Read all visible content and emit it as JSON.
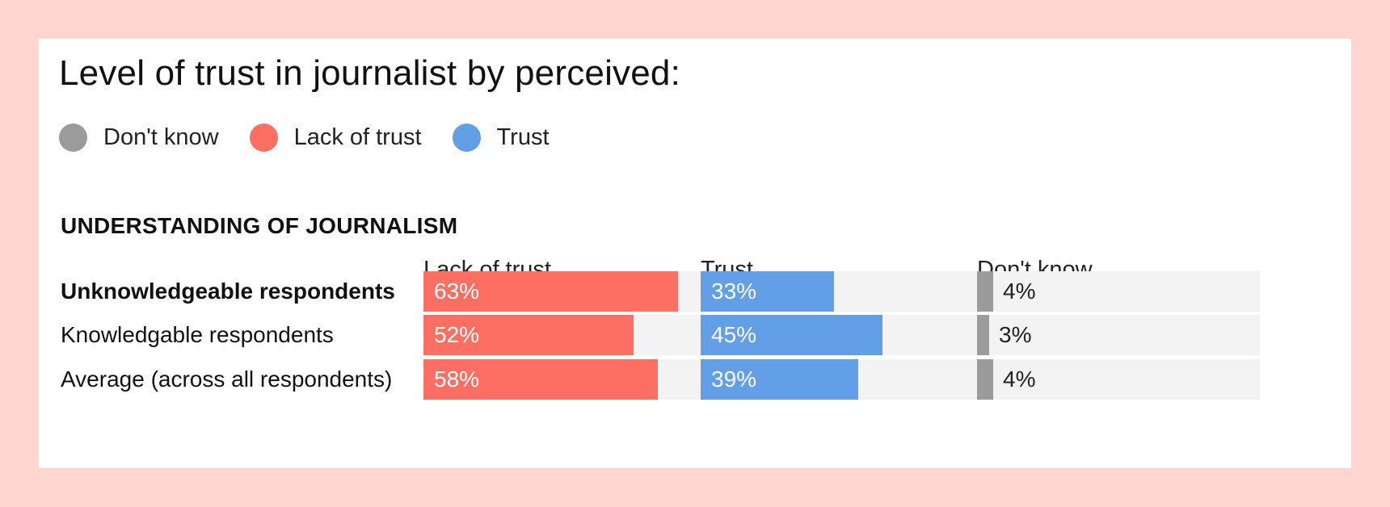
{
  "title": "Level of trust in journalist by perceived:",
  "legend": [
    {
      "label": "Don't know",
      "color": "#9b9b9b"
    },
    {
      "label": "Lack of trust",
      "color": "#fd6e63"
    },
    {
      "label": "Trust",
      "color": "#629fe6"
    }
  ],
  "chart_data": {
    "type": "bar",
    "orientation": "horizontal",
    "title": "Level of trust in journalist by perceived:",
    "subtitle": "UNDERSTANDING OF JOURNALISM",
    "categories": [
      "Unknowledgeable respondents",
      "Knowledgable respondents",
      "Average (across all respondents)"
    ],
    "highlighted_category": "Unknowledgeable respondents",
    "series": [
      {
        "name": "Lack of trust",
        "color": "#fd6e63",
        "values": [
          63,
          52,
          58
        ],
        "labels": [
          "63%",
          "52%",
          "58%"
        ]
      },
      {
        "name": "Trust",
        "color": "#629fe6",
        "values": [
          33,
          45,
          39
        ],
        "labels": [
          "33%",
          "45%",
          "39%"
        ]
      },
      {
        "name": "Don't know",
        "color": "#9b9b9b",
        "values": [
          4,
          3,
          4
        ],
        "labels": [
          "4%",
          "3%",
          "4%"
        ]
      }
    ],
    "xlim": [
      0,
      70
    ],
    "legend_position": "top-left",
    "grid": false
  }
}
